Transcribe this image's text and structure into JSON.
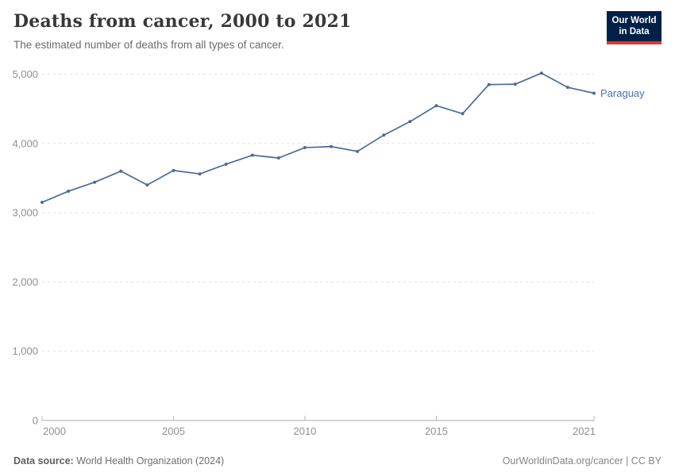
{
  "header": {
    "title": "Deaths from cancer, 2000 to 2021",
    "subtitle": "The estimated number of deaths from all types of cancer.",
    "logo": {
      "line1": "Our World",
      "line2": "in Data",
      "bg_color": "#002147",
      "accent_color": "#d93a32"
    }
  },
  "chart_data": {
    "type": "line",
    "title": "Deaths from cancer, 2000 to 2021",
    "xlabel": "",
    "ylabel": "",
    "xlim": [
      2000,
      2021
    ],
    "ylim": [
      0,
      5000
    ],
    "grid": "horizontal-dashed",
    "legend_position": "end-of-line-label",
    "x_ticks": [
      2000,
      2005,
      2010,
      2015,
      2021
    ],
    "x_tick_labels": [
      "2000",
      "2005",
      "2010",
      "2015",
      "2021"
    ],
    "y_ticks": [
      0,
      1000,
      2000,
      3000,
      4000,
      5000
    ],
    "y_tick_labels": [
      "0",
      "1,000",
      "2,000",
      "3,000",
      "4,000",
      "5,000"
    ],
    "series": [
      {
        "name": "Paraguay",
        "color": "#4c6a9c",
        "label_color": "#4d6fac",
        "x": [
          2000,
          2001,
          2002,
          2003,
          2004,
          2005,
          2006,
          2007,
          2008,
          2009,
          2010,
          2011,
          2012,
          2013,
          2014,
          2015,
          2016,
          2017,
          2018,
          2019,
          2020,
          2021
        ],
        "values": [
          3150,
          3310,
          3440,
          3600,
          3400,
          3610,
          3560,
          3700,
          3830,
          3790,
          3940,
          3955,
          3885,
          4120,
          4315,
          4545,
          4430,
          4850,
          4855,
          5015,
          4810,
          4725
        ]
      }
    ],
    "colors": {
      "gridline": "#e1e1e1",
      "axis_line": "#a8a8a8",
      "tick_mark": "#b8b8b8",
      "tick_label": "#8f8f8f"
    }
  },
  "footer": {
    "source_label": "Data source:",
    "source_value": "World Health Organization (2024)",
    "link_text": "OurWorldinData.org/cancer | CC BY"
  }
}
